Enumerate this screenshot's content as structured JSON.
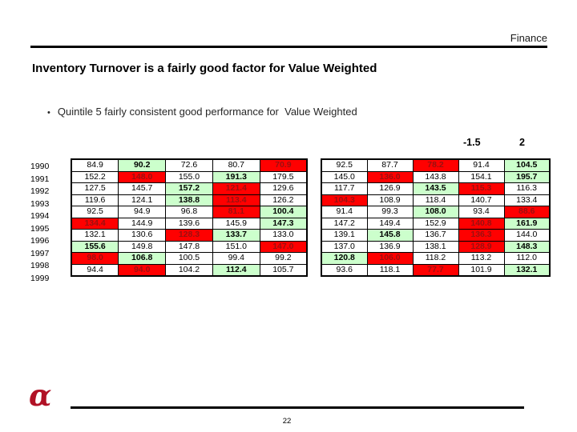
{
  "header": {
    "category": "Finance"
  },
  "title": "Inventory Turnover is a fairly good factor for Value Weighted",
  "bullet": {
    "marker": "•",
    "text": "Quintile 5 fairly consistent good performance for  Value Weighted"
  },
  "scale_labels": {
    "left": "-1.5",
    "right": "2"
  },
  "colors": {
    "rule_black": "#000000",
    "red_cell_bg": "#FF0000",
    "red_cell_text": "#9A1010",
    "green_cell_bg": "#CCFFCC",
    "logo_red": "#B11226"
  },
  "cell_styles": {
    "w": "white",
    "g": "green-highlight",
    "r": "red-highlight"
  },
  "tables": {
    "years": [
      "1990",
      "1991",
      "1992",
      "1993",
      "1994",
      "1995",
      "1996",
      "1997",
      "1998",
      "1999"
    ],
    "left_rows": [
      [
        {
          "v": "84.9",
          "s": "w"
        },
        {
          "v": "90.2",
          "s": "g"
        },
        {
          "v": "72.6",
          "s": "w"
        },
        {
          "v": "80.7",
          "s": "w"
        },
        {
          "v": "70.9",
          "s": "r"
        }
      ],
      [
        {
          "v": "152.2",
          "s": "w"
        },
        {
          "v": "148.0",
          "s": "r"
        },
        {
          "v": "155.0",
          "s": "w"
        },
        {
          "v": "191.3",
          "s": "g"
        },
        {
          "v": "179.5",
          "s": "w"
        }
      ],
      [
        {
          "v": "127.5",
          "s": "w"
        },
        {
          "v": "145.7",
          "s": "w"
        },
        {
          "v": "157.2",
          "s": "g"
        },
        {
          "v": "121.4",
          "s": "r"
        },
        {
          "v": "129.6",
          "s": "w"
        }
      ],
      [
        {
          "v": "119.6",
          "s": "w"
        },
        {
          "v": "124.1",
          "s": "w"
        },
        {
          "v": "138.8",
          "s": "g"
        },
        {
          "v": "113.4",
          "s": "r"
        },
        {
          "v": "126.2",
          "s": "w"
        }
      ],
      [
        {
          "v": "92.5",
          "s": "w"
        },
        {
          "v": "94.9",
          "s": "w"
        },
        {
          "v": "96.8",
          "s": "w"
        },
        {
          "v": "81.1",
          "s": "r"
        },
        {
          "v": "100.4",
          "s": "g"
        }
      ],
      [
        {
          "v": "134.4",
          "s": "r"
        },
        {
          "v": "144.9",
          "s": "w"
        },
        {
          "v": "139.6",
          "s": "w"
        },
        {
          "v": "145.9",
          "s": "w"
        },
        {
          "v": "147.3",
          "s": "g"
        }
      ],
      [
        {
          "v": "132.1",
          "s": "w"
        },
        {
          "v": "130.6",
          "s": "w"
        },
        {
          "v": "128.3",
          "s": "r"
        },
        {
          "v": "133.7",
          "s": "g"
        },
        {
          "v": "133.0",
          "s": "w"
        }
      ],
      [
        {
          "v": "155.6",
          "s": "g"
        },
        {
          "v": "149.8",
          "s": "w"
        },
        {
          "v": "147.8",
          "s": "w"
        },
        {
          "v": "151.0",
          "s": "w"
        },
        {
          "v": "147.0",
          "s": "r"
        }
      ],
      [
        {
          "v": "98.0",
          "s": "r"
        },
        {
          "v": "106.8",
          "s": "g"
        },
        {
          "v": "100.5",
          "s": "w"
        },
        {
          "v": "99.4",
          "s": "w"
        },
        {
          "v": "99.2",
          "s": "w"
        }
      ],
      [
        {
          "v": "94.4",
          "s": "w"
        },
        {
          "v": "94.0",
          "s": "r"
        },
        {
          "v": "104.2",
          "s": "w"
        },
        {
          "v": "112.4",
          "s": "g"
        },
        {
          "v": "105.7",
          "s": "w"
        }
      ]
    ],
    "right_rows": [
      [
        {
          "v": "92.5",
          "s": "w"
        },
        {
          "v": "87.7",
          "s": "w"
        },
        {
          "v": "78.2",
          "s": "r"
        },
        {
          "v": "91.4",
          "s": "w"
        },
        {
          "v": "104.5",
          "s": "g"
        }
      ],
      [
        {
          "v": "145.0",
          "s": "w"
        },
        {
          "v": "136.0",
          "s": "r"
        },
        {
          "v": "143.8",
          "s": "w"
        },
        {
          "v": "154.1",
          "s": "w"
        },
        {
          "v": "195.7",
          "s": "g"
        }
      ],
      [
        {
          "v": "117.7",
          "s": "w"
        },
        {
          "v": "126.9",
          "s": "w"
        },
        {
          "v": "143.5",
          "s": "g"
        },
        {
          "v": "115.3",
          "s": "r"
        },
        {
          "v": "116.3",
          "s": "w"
        }
      ],
      [
        {
          "v": "104.3",
          "s": "r"
        },
        {
          "v": "108.9",
          "s": "w"
        },
        {
          "v": "118.4",
          "s": "w"
        },
        {
          "v": "140.7",
          "s": "w"
        },
        {
          "v": "133.4",
          "s": "w"
        }
      ],
      [
        {
          "v": "91.4",
          "s": "w"
        },
        {
          "v": "99.3",
          "s": "w"
        },
        {
          "v": "108.0",
          "s": "g"
        },
        {
          "v": "93.4",
          "s": "w"
        },
        {
          "v": "88.6",
          "s": "r"
        }
      ],
      [
        {
          "v": "147.2",
          "s": "w"
        },
        {
          "v": "149.4",
          "s": "w"
        },
        {
          "v": "152.9",
          "s": "w"
        },
        {
          "v": "140.8",
          "s": "r"
        },
        {
          "v": "161.9",
          "s": "g"
        }
      ],
      [
        {
          "v": "139.1",
          "s": "w"
        },
        {
          "v": "145.8",
          "s": "g"
        },
        {
          "v": "136.7",
          "s": "w"
        },
        {
          "v": "136.3",
          "s": "r"
        },
        {
          "v": "144.0",
          "s": "w"
        }
      ],
      [
        {
          "v": "137.0",
          "s": "w"
        },
        {
          "v": "136.9",
          "s": "w"
        },
        {
          "v": "138.1",
          "s": "w"
        },
        {
          "v": "128.9",
          "s": "r"
        },
        {
          "v": "148.3",
          "s": "g"
        }
      ],
      [
        {
          "v": "120.8",
          "s": "g"
        },
        {
          "v": "106.0",
          "s": "r"
        },
        {
          "v": "118.2",
          "s": "w"
        },
        {
          "v": "113.2",
          "s": "w"
        },
        {
          "v": "112.0",
          "s": "w"
        }
      ],
      [
        {
          "v": "93.6",
          "s": "w"
        },
        {
          "v": "118.1",
          "s": "w"
        },
        {
          "v": "77.7",
          "s": "r"
        },
        {
          "v": "101.9",
          "s": "w"
        },
        {
          "v": "132.1",
          "s": "g"
        }
      ]
    ]
  },
  "footer": {
    "logo_glyph": "α",
    "page": "22"
  }
}
